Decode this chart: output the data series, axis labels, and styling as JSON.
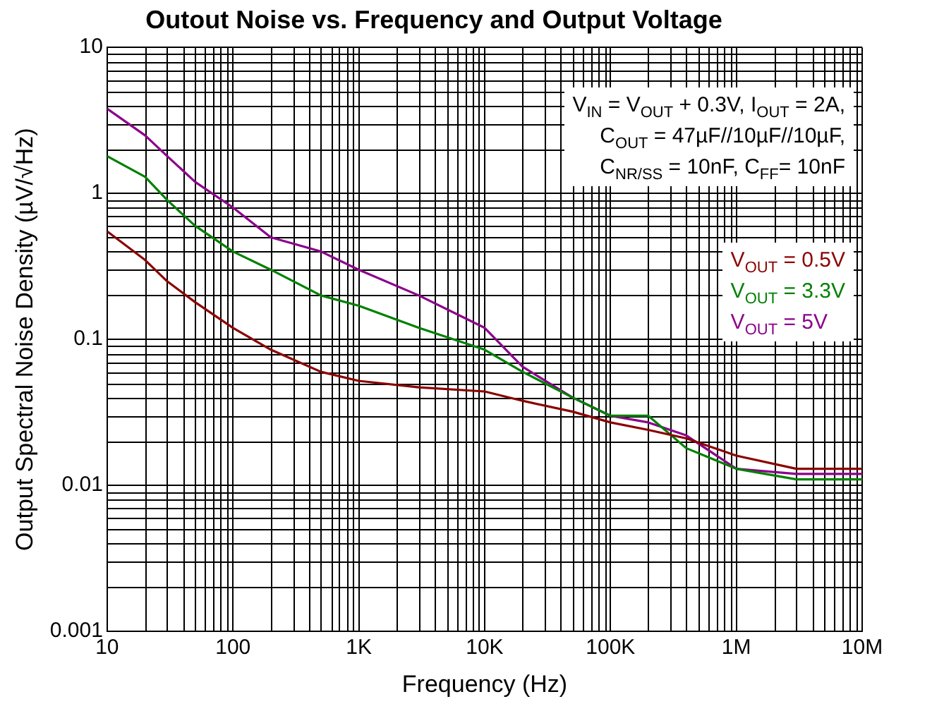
{
  "chart_data": {
    "type": "line",
    "title": "Outout Noise vs. Frequency and Output Voltage",
    "xlabel": "Frequency (Hz)",
    "ylabel": "Output Spectral Noise Density (µV/√Hz)",
    "log": "xy",
    "grid": true,
    "legend": "right",
    "marker": "none",
    "line_style": "solid",
    "xlim": [
      10,
      10000000
    ],
    "xticks": [
      10,
      100,
      {
        "value": 1000,
        "label": "1K"
      },
      {
        "value": 10000,
        "label": "10K"
      },
      {
        "value": 100000,
        "label": "100K"
      },
      {
        "value": 1000000,
        "label": "1M"
      },
      {
        "value": 10000000,
        "label": "10M"
      }
    ],
    "ylim": [
      0.001,
      10
    ],
    "yticks": [
      0.001,
      0.01,
      0.1,
      1,
      10
    ],
    "annotations": [
      "V$_{IN}$ = V$_{OUT}$ + 0.3V, I$_{OUT}$ = 2A,",
      "C$_{OUT}$ = 47µF//10µF//10µF,",
      "C$_{NR/SS}$ = 10nF, C$_{FF}$= 10nF"
    ],
    "x": [
      10,
      20,
      30,
      50,
      100,
      200,
      500,
      1000,
      3000,
      10000,
      20000,
      50000,
      100000,
      200000,
      400000,
      1000000,
      3000000,
      10000000
    ],
    "series": [
      {
        "name": "V$_{OUT}$ = 0.5V",
        "color": "#8b0000",
        "values": [
          0.55,
          0.35,
          0.25,
          0.18,
          0.12,
          0.085,
          0.06,
          0.052,
          0.047,
          0.044,
          0.038,
          0.032,
          0.027,
          0.024,
          0.021,
          0.016,
          0.013,
          0.013
        ]
      },
      {
        "name": "V$_{OUT}$ = 3.3V",
        "color": "#008000",
        "values": [
          1.8,
          1.3,
          0.9,
          0.6,
          0.4,
          0.3,
          0.2,
          0.17,
          0.12,
          0.085,
          0.06,
          0.04,
          0.03,
          0.03,
          0.018,
          0.013,
          0.011,
          0.011
        ]
      },
      {
        "name": "V$_{OUT}$ = 5V",
        "color": "#8b008b",
        "values": [
          3.8,
          2.5,
          1.8,
          1.2,
          0.8,
          0.5,
          0.4,
          0.3,
          0.2,
          0.12,
          0.065,
          0.04,
          0.03,
          0.027,
          0.022,
          0.013,
          0.012,
          0.012
        ]
      }
    ]
  }
}
